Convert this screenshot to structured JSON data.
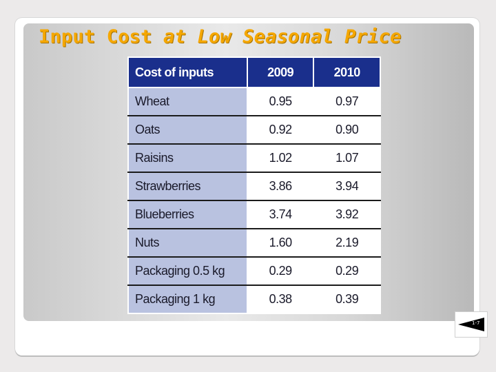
{
  "slide": {
    "title_part1": "Input Cost ",
    "title_part2": "at Low Seasonal Price",
    "page_number": "1-7",
    "colors": {
      "title": "#f5a700",
      "table_header": "#1a2f8c",
      "table_label_cell": "#b9c2e0"
    }
  },
  "table": {
    "headers": [
      "Cost of inputs",
      "2009",
      "2010"
    ],
    "rows": [
      {
        "label": "Wheat",
        "y2009": "0.95",
        "y2010": "0.97"
      },
      {
        "label": "Oats",
        "y2009": "0.92",
        "y2010": "0.90"
      },
      {
        "label": "Raisins",
        "y2009": "1.02",
        "y2010": "1.07"
      },
      {
        "label": "Strawberries",
        "y2009": "3.86",
        "y2010": "3.94"
      },
      {
        "label": "Blueberries",
        "y2009": "3.74",
        "y2010": "3.92"
      },
      {
        "label": "Nuts",
        "y2009": "1.60",
        "y2010": "2.19"
      },
      {
        "label": "Packaging 0.5 kg",
        "y2009": "0.29",
        "y2010": "0.29"
      },
      {
        "label": "Packaging 1 kg",
        "y2009": "0.38",
        "y2010": "0.39"
      }
    ]
  }
}
